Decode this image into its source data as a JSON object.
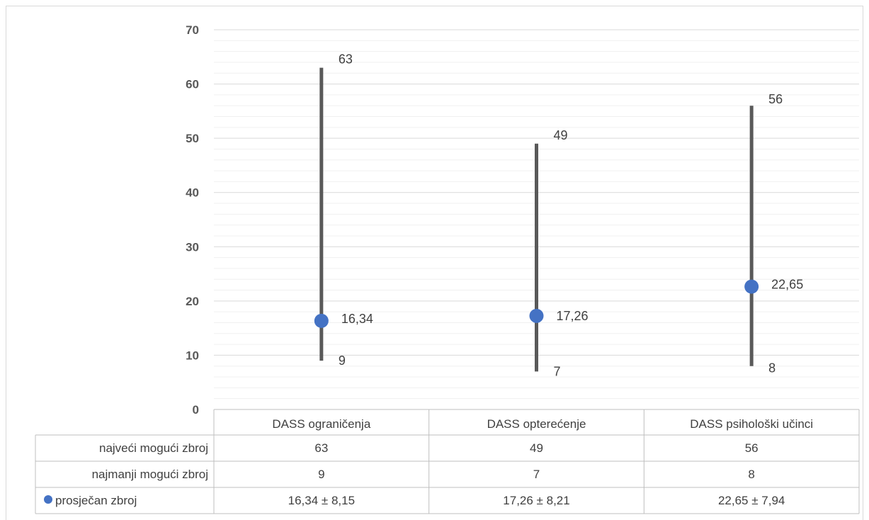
{
  "chart_data": {
    "type": "range_and_mean",
    "title": "",
    "xlabel": "",
    "ylabel": "",
    "ylim": [
      0,
      70
    ],
    "yticks": [
      "0",
      "10",
      "20",
      "30",
      "40",
      "50",
      "60",
      "70"
    ],
    "grid": true,
    "minor_grid_step": 2,
    "categories": [
      "DASS ograničenja",
      "DASS opterećenje",
      "DASS psihološki učinci"
    ],
    "series": [
      {
        "name": "najveći mogući zbroj",
        "values": [
          63,
          49,
          56
        ],
        "labels": [
          "63",
          "49",
          "56"
        ],
        "color": "#595959"
      },
      {
        "name": "najmanji mogući zbroj",
        "values": [
          9,
          7,
          8
        ],
        "labels": [
          "9",
          "7",
          "8"
        ],
        "color": "#595959"
      },
      {
        "name": "prosječan zbroj",
        "values": [
          16.34,
          17.26,
          22.65
        ],
        "labels": [
          "16,34",
          "17,26",
          "22,65"
        ],
        "color": "#4472c4",
        "marker": "circle"
      }
    ],
    "data_table": {
      "rows": [
        {
          "label": "najveći mogući zbroj",
          "cells": [
            "63",
            "49",
            "56"
          ],
          "legend_marker": false
        },
        {
          "label": "najmanji mogući zbroj",
          "cells": [
            "9",
            "7",
            "8"
          ],
          "legend_marker": false
        },
        {
          "label": "prosječan zbroj",
          "cells": [
            "16,34 ± 8,15",
            "17,26  ± 8,21",
            "22,65 ± 7,94"
          ],
          "legend_marker": true
        }
      ]
    }
  }
}
